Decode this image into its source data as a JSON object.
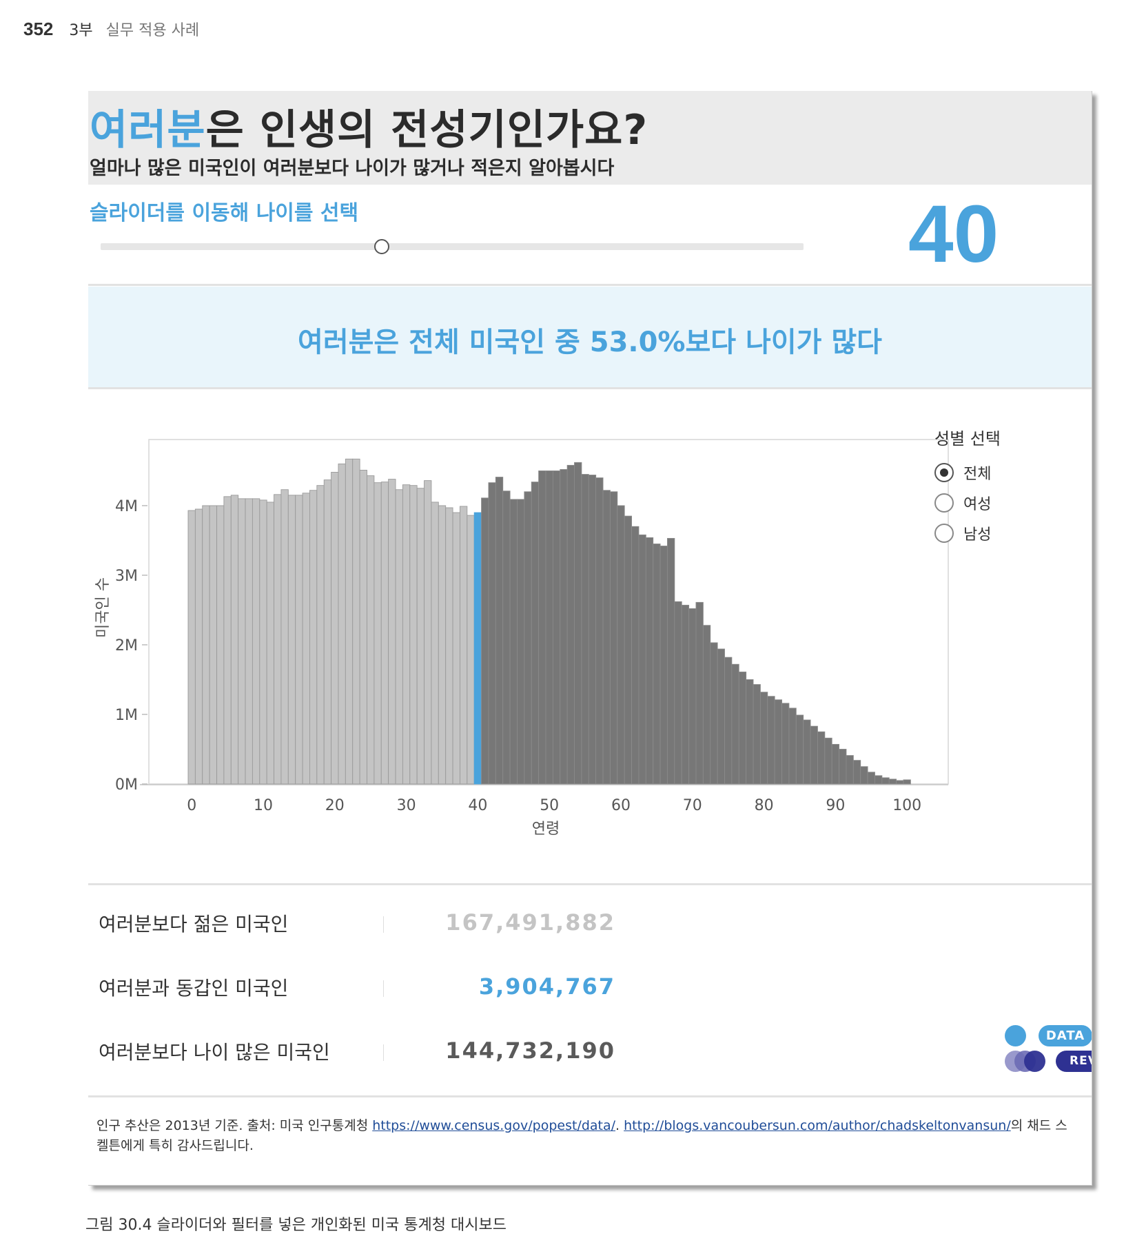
{
  "page_header": {
    "page_number": "352",
    "part": "3부",
    "section": "실무 적용 사례"
  },
  "dashboard": {
    "title_accent": "여러분",
    "title_rest": "은 인생의 전성기인가요?",
    "subtitle": "얼마나 많은 미국인이 여러분보다 나이가 많거나 적은지 알아봅시다",
    "slider": {
      "label": "슬라이더를 이동해 나이를 선택",
      "value": "40",
      "position_fraction": 0.4
    },
    "banner": "여러분은 전체 미국인 중 53.0%보다 나이가 많다",
    "legend": {
      "title": "성별 선택",
      "options": [
        {
          "label": "전체",
          "selected": true
        },
        {
          "label": "여성",
          "selected": false
        },
        {
          "label": "남성",
          "selected": false
        }
      ]
    },
    "stats": [
      {
        "label": "여러분보다 젊은 미국인",
        "value": "167,491,882",
        "color": "#c4c4c4"
      },
      {
        "label": "여러분과 동갑인 미국인",
        "value": "3,904,767",
        "color": "#4aa3dc"
      },
      {
        "label": "여러분보다 나이 많은 미국인",
        "value": "144,732,190",
        "color": "#5a5a5a"
      }
    ],
    "logo": {
      "top": "DATA",
      "bottom": "REVELATIONS"
    },
    "footer": {
      "text1": "인구 추산은 2013년 기준. 출처: 미국 인구통계청 ",
      "link1": "https://www.census.gov/popest/data/",
      "text2": ". ",
      "link2": "http://blogs.vancoubersun.com/author/chadskeltonvansun/",
      "text3": "의 채드 스켈튼에게 특히 감사드립니다."
    }
  },
  "caption": "그림 30.4 슬라이더와 필터를 넣은 개인화된 미국 통계청 대시보드",
  "colors": {
    "accent": "#4aa3dc",
    "younger": "#c4c4c4",
    "selected": "#4aa3dc",
    "older": "#777777"
  },
  "chart_data": {
    "type": "bar",
    "xlabel": "연령",
    "ylabel": "미국인 수",
    "selected_age": 40,
    "x": [
      0,
      1,
      2,
      3,
      4,
      5,
      6,
      7,
      8,
      9,
      10,
      11,
      12,
      13,
      14,
      15,
      16,
      17,
      18,
      19,
      20,
      21,
      22,
      23,
      24,
      25,
      26,
      27,
      28,
      29,
      30,
      31,
      32,
      33,
      34,
      35,
      36,
      37,
      38,
      39,
      40,
      41,
      42,
      43,
      44,
      45,
      46,
      47,
      48,
      49,
      50,
      51,
      52,
      53,
      54,
      55,
      56,
      57,
      58,
      59,
      60,
      61,
      62,
      63,
      64,
      65,
      66,
      67,
      68,
      69,
      70,
      71,
      72,
      73,
      74,
      75,
      76,
      77,
      78,
      79,
      80,
      81,
      82,
      83,
      84,
      85,
      86,
      87,
      88,
      89,
      90,
      91,
      92,
      93,
      94,
      95,
      96,
      97,
      98,
      99,
      100
    ],
    "values": [
      3.93,
      3.95,
      4.0,
      4.0,
      4.0,
      4.13,
      4.15,
      4.1,
      4.1,
      4.1,
      4.08,
      4.05,
      4.16,
      4.23,
      4.15,
      4.15,
      4.18,
      4.22,
      4.29,
      4.37,
      4.48,
      4.6,
      4.67,
      4.67,
      4.51,
      4.43,
      4.33,
      4.34,
      4.38,
      4.23,
      4.3,
      4.29,
      4.25,
      4.36,
      4.05,
      4.0,
      3.97,
      3.9,
      3.99,
      3.86,
      3.9,
      4.11,
      4.33,
      4.41,
      4.21,
      4.09,
      4.09,
      4.2,
      4.34,
      4.5,
      4.5,
      4.5,
      4.52,
      4.58,
      4.62,
      4.45,
      4.44,
      4.4,
      4.22,
      4.2,
      4.0,
      3.85,
      3.7,
      3.58,
      3.54,
      3.45,
      3.42,
      3.53,
      2.62,
      2.57,
      2.52,
      2.61,
      2.28,
      2.03,
      1.94,
      1.82,
      1.72,
      1.61,
      1.5,
      1.43,
      1.32,
      1.26,
      1.21,
      1.16,
      1.09,
      0.99,
      0.92,
      0.83,
      0.75,
      0.66,
      0.57,
      0.5,
      0.41,
      0.34,
      0.25,
      0.17,
      0.12,
      0.09,
      0.07,
      0.05,
      0.06
    ],
    "value_unit": "M",
    "ylim": [
      0,
      4.95
    ],
    "yticks": [
      0,
      1,
      2,
      3,
      4
    ],
    "ytick_labels": [
      "0M",
      "1M",
      "2M",
      "3M",
      "4M"
    ],
    "xticks": [
      0,
      10,
      20,
      30,
      40,
      50,
      60,
      70,
      80,
      90,
      100
    ],
    "xtick_labels": [
      "0",
      "10",
      "20",
      "30",
      "40",
      "50",
      "60",
      "70",
      "80",
      "90",
      "100"
    ]
  }
}
